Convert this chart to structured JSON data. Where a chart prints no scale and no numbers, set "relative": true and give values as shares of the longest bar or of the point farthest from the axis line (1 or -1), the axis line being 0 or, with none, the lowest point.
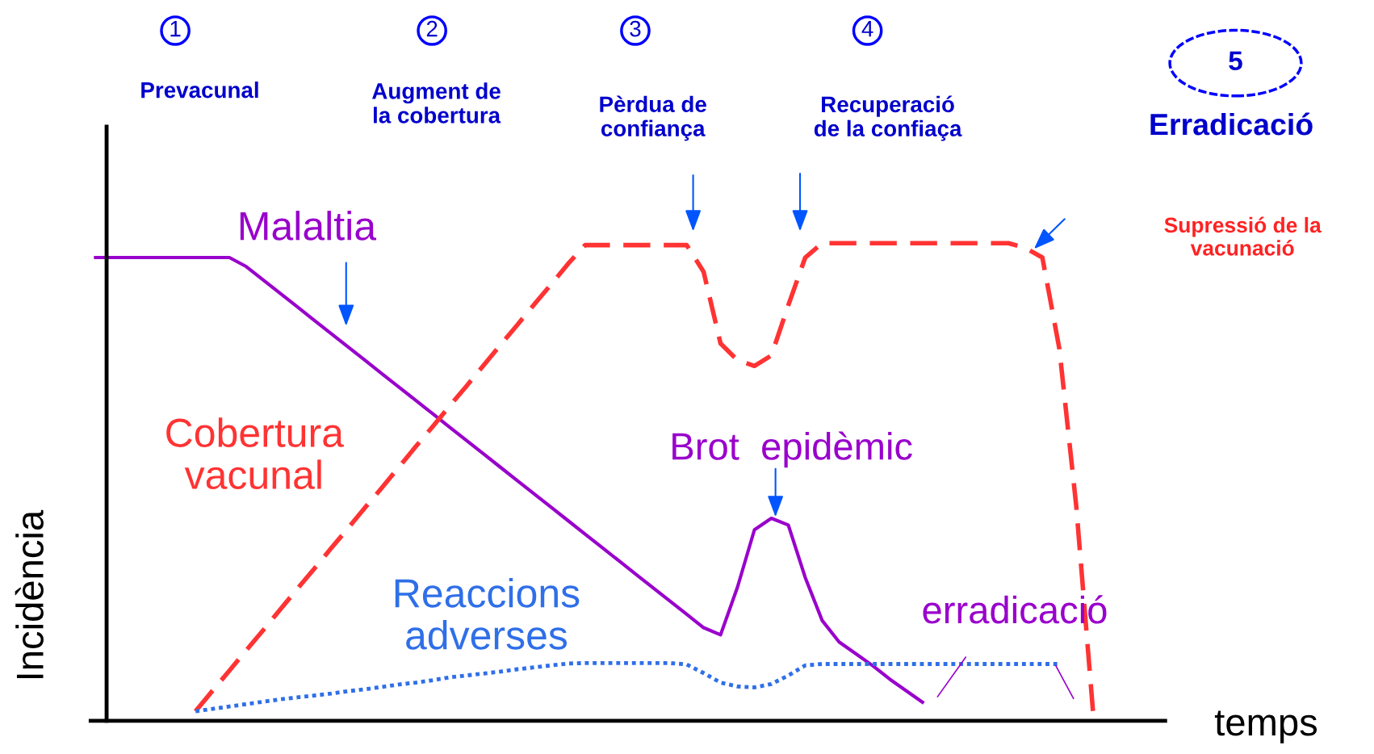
{
  "chart_data": {
    "type": "line",
    "relative": true,
    "xlabel": "temps",
    "ylabel": "Incidència",
    "categories": [
      null,
      null,
      null,
      null,
      null,
      null,
      null,
      null,
      null,
      null,
      null,
      null,
      null,
      null,
      null,
      null,
      null,
      null,
      null,
      null,
      null,
      null,
      null,
      null,
      null,
      null,
      null,
      null,
      null,
      null,
      null,
      null,
      null,
      null,
      null,
      null,
      null,
      null,
      null,
      null,
      null,
      null,
      null,
      null,
      null,
      null,
      null,
      null,
      null,
      null,
      null,
      null,
      null,
      null,
      null,
      null,
      null,
      null,
      null,
      null
    ],
    "series": [
      {
        "name": "Malaltia",
        "color": "#9900cc",
        "line_style": "solid",
        "values": [
          0.97,
          0.97,
          0.97,
          0.97,
          0.97,
          0.97,
          0.97,
          0.97,
          0.97,
          0.951,
          0.923,
          0.895,
          0.867,
          0.839,
          0.811,
          0.783,
          0.755,
          0.727,
          0.699,
          0.671,
          0.643,
          0.615,
          0.587,
          0.559,
          0.531,
          0.503,
          0.475,
          0.447,
          0.419,
          0.391,
          0.363,
          0.335,
          0.307,
          0.279,
          0.251,
          0.223,
          0.195,
          0.18,
          0.28,
          0.4,
          0.424,
          0.41,
          0.3,
          0.21,
          0.165,
          0.14,
          0.115,
          0.087,
          0.062,
          0.037,
          null,
          null,
          null,
          null,
          null,
          null,
          null,
          null,
          null,
          null
        ]
      },
      {
        "name": "Cobertura\nvacunal",
        "color": "#ff3333",
        "line_style": "dashed",
        "values": [
          null,
          null,
          null,
          null,
          null,
          null,
          0.02,
          0.063,
          0.105,
          0.148,
          0.19,
          0.233,
          0.276,
          0.318,
          0.361,
          0.403,
          0.446,
          0.488,
          0.531,
          0.574,
          0.616,
          0.659,
          0.701,
          0.744,
          0.787,
          0.829,
          0.872,
          0.914,
          0.957,
          0.996,
          0.996,
          0.996,
          0.996,
          0.996,
          0.996,
          0.996,
          0.94,
          0.79,
          0.755,
          0.743,
          0.765,
          0.87,
          0.97,
          1.0,
          1.0,
          1.0,
          1.0,
          1.0,
          1.0,
          1.0,
          1.0,
          1.0,
          1.0,
          1.0,
          1.0,
          0.99,
          0.97,
          0.78,
          0.45,
          0.015
        ]
      },
      {
        "name": "Reaccions\nadverses",
        "color": "#2f6fe8",
        "line_style": "dotted",
        "values": [
          null,
          null,
          null,
          null,
          null,
          null,
          0.02,
          0.025,
          0.03,
          0.035,
          0.04,
          0.045,
          0.049,
          0.053,
          0.057,
          0.062,
          0.066,
          0.071,
          0.076,
          0.08,
          0.085,
          0.091,
          0.095,
          0.099,
          0.103,
          0.108,
          0.112,
          0.116,
          0.12,
          0.121,
          0.121,
          0.121,
          0.121,
          0.121,
          0.121,
          0.118,
          0.1,
          0.08,
          0.072,
          0.07,
          0.077,
          0.095,
          0.116,
          0.119,
          0.119,
          0.119,
          0.119,
          0.119,
          0.119,
          0.119,
          0.119,
          0.119,
          0.119,
          0.119,
          0.119,
          0.119,
          0.119,
          0.119,
          null,
          null
        ]
      }
    ],
    "annotations": [
      "1",
      "Prevacunal",
      "2",
      "Augment de\nla cobertura",
      "3",
      "Pèrdua de\nconfiança",
      "4",
      "Recuperació\nde la confiaça",
      "5",
      "Erradicació",
      "Supressió de la\nvacunació",
      "Brot  epidèmic",
      "erradicació"
    ]
  }
}
